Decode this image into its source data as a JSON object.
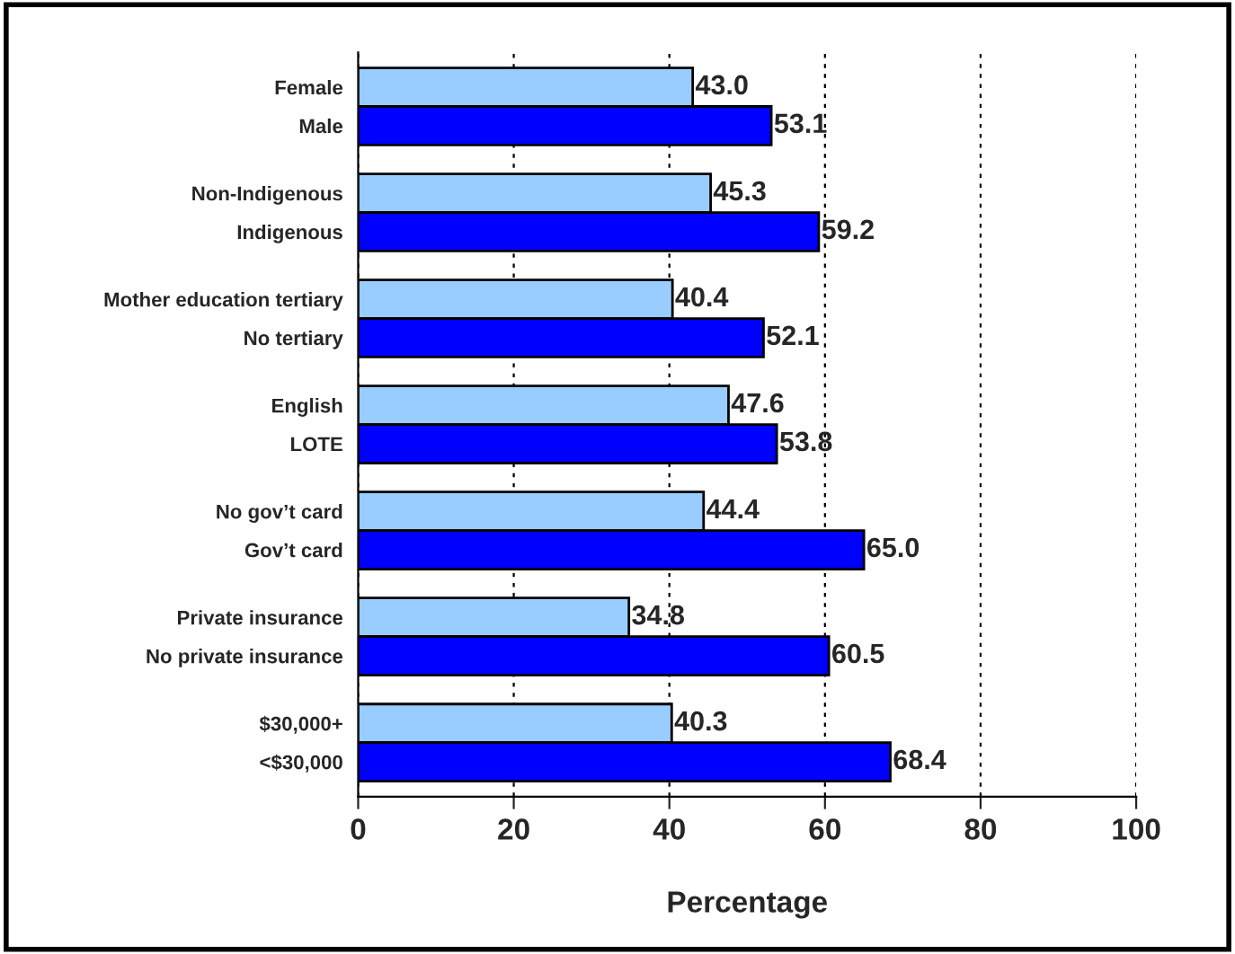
{
  "chart_data": {
    "type": "bar",
    "orientation": "horizontal",
    "xlabel": "Percentage",
    "categories": [
      "Female",
      "Male",
      "Non-Indigenous",
      "Indigenous",
      "Mother education tertiary",
      "No tertiary",
      "English",
      "LOTE",
      "No gov’t card",
      "Gov’t card",
      "Private insurance",
      "No private insurance",
      "$30,000+",
      "<$30,000"
    ],
    "values": [
      43.0,
      53.1,
      45.3,
      59.2,
      40.4,
      52.1,
      47.6,
      53.8,
      44.4,
      65.0,
      34.8,
      60.5,
      40.3,
      68.4
    ],
    "colors": [
      "#99ccff",
      "#0000ff",
      "#99ccff",
      "#0000ff",
      "#99ccff",
      "#0000ff",
      "#99ccff",
      "#0000ff",
      "#99ccff",
      "#0000ff",
      "#99ccff",
      "#0000ff",
      "#99ccff",
      "#0000ff"
    ],
    "value_labels": [
      "43.0",
      "53.1",
      "45.3",
      "59.2",
      "40.4",
      "52.1",
      "47.6",
      "53.8",
      "44.4",
      "65.0",
      "34.8",
      "60.5",
      "40.3",
      "68.4"
    ],
    "xlim": [
      0,
      100
    ],
    "xticks": [
      0,
      20,
      40,
      60,
      80,
      100
    ],
    "grid": "x"
  }
}
